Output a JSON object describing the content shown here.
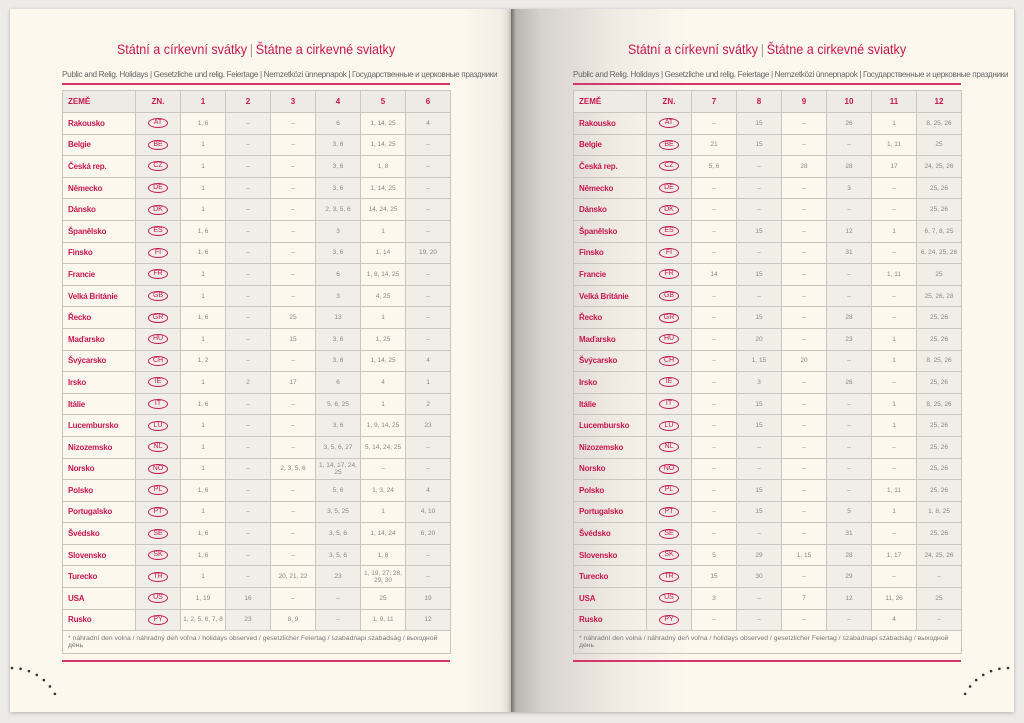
{
  "title_cz": "Státní a církevní svátky",
  "title_sk": "Štátne a cirkevné sviatky",
  "title_sep": "|",
  "subtitle": "Public and Relig. Holidays | Gesetzliche und relig. Feiertage | Nemzetközi ünnepnapok | Государственные и церковные праздники",
  "col_country": "ZEMĚ",
  "col_code": "ZN.",
  "footnote": "* náhradní den volna / náhradný deň voľna / holidays observed / gesetzlicher Feiertag / szabadnapi szabadság / выходной день",
  "colors": {
    "accent": "#c8174f",
    "page": "#fdf8ee",
    "shade": "#f1ede7"
  },
  "countries": [
    {
      "name": "Rakousko",
      "code": "AT"
    },
    {
      "name": "Belgie",
      "code": "BE"
    },
    {
      "name": "Česká rep.",
      "code": "CZ"
    },
    {
      "name": "Německo",
      "code": "DE"
    },
    {
      "name": "Dánsko",
      "code": "DK"
    },
    {
      "name": "Španělsko",
      "code": "ES"
    },
    {
      "name": "Finsko",
      "code": "FI"
    },
    {
      "name": "Francie",
      "code": "FR"
    },
    {
      "name": "Velká Británie",
      "code": "GB"
    },
    {
      "name": "Řecko",
      "code": "GR"
    },
    {
      "name": "Maďarsko",
      "code": "HU"
    },
    {
      "name": "Švýcarsko",
      "code": "CH"
    },
    {
      "name": "Irsko",
      "code": "IE"
    },
    {
      "name": "Itálie",
      "code": "IT"
    },
    {
      "name": "Lucembursko",
      "code": "LU"
    },
    {
      "name": "Nizozemsko",
      "code": "NL"
    },
    {
      "name": "Norsko",
      "code": "NO"
    },
    {
      "name": "Polsko",
      "code": "PL"
    },
    {
      "name": "Portugalsko",
      "code": "PT"
    },
    {
      "name": "Švédsko",
      "code": "SE"
    },
    {
      "name": "Slovensko",
      "code": "SK"
    },
    {
      "name": "Turecko",
      "code": "TR"
    },
    {
      "name": "USA",
      "code": "US"
    },
    {
      "name": "Rusko",
      "code": "PY"
    }
  ],
  "pages": [
    {
      "months": [
        "1",
        "2",
        "3",
        "4",
        "5",
        "6"
      ],
      "values": [
        [
          "1, 6",
          "–",
          "–",
          "6",
          "1, 14, 25",
          "4"
        ],
        [
          "1",
          "–",
          "–",
          "3, 6",
          "1, 14, 25",
          "–"
        ],
        [
          "1",
          "–",
          "–",
          "3, 6",
          "1, 8",
          "–"
        ],
        [
          "1",
          "–",
          "–",
          "3, 6",
          "1, 14, 25",
          "–"
        ],
        [
          "1",
          "–",
          "–",
          "2, 3, 5, 6",
          "14, 24, 25",
          "–"
        ],
        [
          "1, 6",
          "–",
          "–",
          "3",
          "1",
          "–"
        ],
        [
          "1, 6",
          "–",
          "–",
          "3, 6",
          "1, 14",
          "19, 20"
        ],
        [
          "1",
          "–",
          "–",
          "6",
          "1, 8, 14, 25",
          "–"
        ],
        [
          "1",
          "–",
          "–",
          "3",
          "4, 25",
          "–"
        ],
        [
          "1, 6",
          "–",
          "25",
          "13",
          "1",
          "–"
        ],
        [
          "1",
          "–",
          "15",
          "3, 6",
          "1, 25",
          "–"
        ],
        [
          "1, 2",
          "–",
          "–",
          "3, 6",
          "1, 14, 25",
          "4"
        ],
        [
          "1",
          "2",
          "17",
          "6",
          "4",
          "1"
        ],
        [
          "1, 6",
          "–",
          "–",
          "5, 6, 25",
          "1",
          "2"
        ],
        [
          "1",
          "–",
          "–",
          "3, 6",
          "1, 9, 14, 25",
          "23"
        ],
        [
          "1",
          "–",
          "–",
          "3, 5, 6, 27",
          "5, 14, 24, 25",
          "–"
        ],
        [
          "1",
          "–",
          "2, 3, 5, 6",
          "1, 14, 17, 24, 25",
          "–",
          "–"
        ],
        [
          "1, 6",
          "–",
          "–",
          "5, 6",
          "1, 3, 24",
          "4"
        ],
        [
          "1",
          "–",
          "–",
          "3, 5, 25",
          "1",
          "4, 10"
        ],
        [
          "1, 6",
          "–",
          "–",
          "3, 5, 6",
          "1, 14, 24",
          "6, 20"
        ],
        [
          "1, 6",
          "–",
          "–",
          "3, 5, 6",
          "1, 8",
          "–"
        ],
        [
          "1",
          "–",
          "20, 21, 22",
          "23",
          "1, 19, 27, 28, 29, 30",
          "–"
        ],
        [
          "1, 19",
          "16",
          "–",
          "–",
          "25",
          "19"
        ],
        [
          "1, 2, 5, 6, 7, 8",
          "23",
          "8, 9",
          "–",
          "1, 9, 11",
          "12"
        ]
      ]
    },
    {
      "months": [
        "7",
        "8",
        "9",
        "10",
        "11",
        "12"
      ],
      "values": [
        [
          "–",
          "15",
          "–",
          "26",
          "1",
          "8, 25, 26"
        ],
        [
          "21",
          "15",
          "–",
          "–",
          "1, 11",
          "25"
        ],
        [
          "5, 6",
          "–",
          "28",
          "28",
          "17",
          "24, 25, 26"
        ],
        [
          "–",
          "–",
          "–",
          "3",
          "–",
          "25, 26"
        ],
        [
          "–",
          "–",
          "–",
          "–",
          "–",
          "25, 26"
        ],
        [
          "–",
          "15",
          "–",
          "12",
          "1",
          "6, 7, 8, 25"
        ],
        [
          "–",
          "–",
          "–",
          "31",
          "–",
          "6, 24, 25, 26"
        ],
        [
          "14",
          "15",
          "–",
          "–",
          "1, 11",
          "25"
        ],
        [
          "–",
          "–",
          "–",
          "–",
          "–",
          "25, 26, 28"
        ],
        [
          "–",
          "15",
          "–",
          "28",
          "–",
          "25, 26"
        ],
        [
          "–",
          "20",
          "–",
          "23",
          "1",
          "25, 26"
        ],
        [
          "–",
          "1, 15",
          "20",
          "–",
          "1",
          "8, 25, 26"
        ],
        [
          "–",
          "3",
          "–",
          "26",
          "–",
          "25, 26"
        ],
        [
          "–",
          "15",
          "–",
          "–",
          "1",
          "8, 25, 26"
        ],
        [
          "–",
          "15",
          "–",
          "–",
          "1",
          "25, 26"
        ],
        [
          "–",
          "–",
          "–",
          "–",
          "–",
          "25, 26"
        ],
        [
          "–",
          "–",
          "–",
          "–",
          "–",
          "25, 26"
        ],
        [
          "–",
          "15",
          "–",
          "–",
          "1, 11",
          "25, 26"
        ],
        [
          "–",
          "15",
          "–",
          "5",
          "1",
          "1, 8, 25"
        ],
        [
          "–",
          "–",
          "–",
          "31",
          "–",
          "25, 26"
        ],
        [
          "5",
          "29",
          "1, 15",
          "28",
          "1, 17",
          "24, 25, 26"
        ],
        [
          "15",
          "30",
          "–",
          "29",
          "–",
          "–"
        ],
        [
          "3",
          "–",
          "7",
          "12",
          "11, 26",
          "25"
        ],
        [
          "–",
          "–",
          "–",
          "–",
          "4",
          "–"
        ]
      ]
    }
  ]
}
